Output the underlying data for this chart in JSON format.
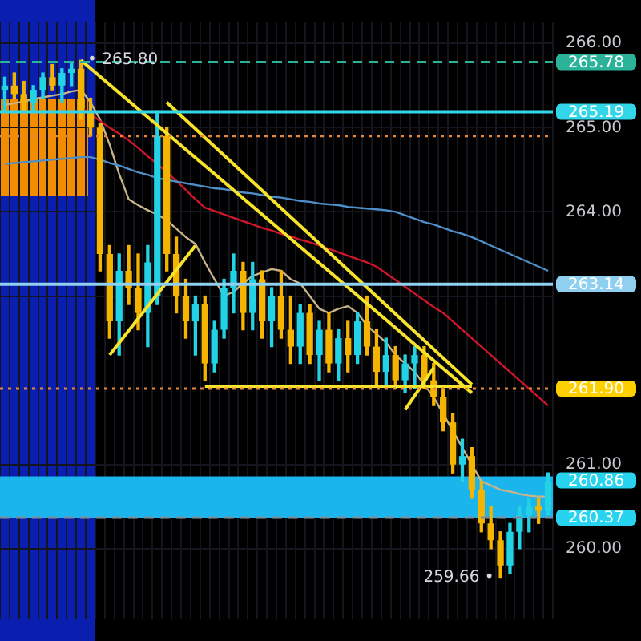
{
  "chart_data": {
    "type": "candlestick",
    "categories": [
      null,
      null,
      null,
      null,
      null,
      null,
      null,
      null,
      null,
      null,
      null,
      null,
      null,
      null,
      null,
      null,
      null,
      null,
      null,
      null,
      null,
      null,
      null,
      null,
      null,
      null,
      null,
      null,
      null,
      null,
      null,
      null,
      null,
      null,
      null,
      null,
      null,
      null,
      null,
      null,
      null,
      null,
      null,
      null,
      null,
      null,
      null,
      null,
      null,
      null,
      null,
      null,
      null,
      null,
      null,
      null,
      null,
      null
    ],
    "ohlc": [
      [
        265.45,
        265.6,
        265.2,
        265.5
      ],
      [
        265.5,
        265.65,
        265.35,
        265.4
      ],
      [
        265.4,
        265.55,
        265.2,
        265.3
      ],
      [
        265.3,
        265.5,
        265.2,
        265.45
      ],
      [
        265.45,
        265.65,
        265.35,
        265.6
      ],
      [
        265.6,
        265.75,
        265.45,
        265.5
      ],
      [
        265.5,
        265.7,
        265.3,
        265.65
      ],
      [
        265.65,
        265.78,
        265.5,
        265.7
      ],
      [
        265.7,
        265.8,
        265.1,
        265.2
      ],
      [
        265.2,
        265.35,
        264.9,
        265.0
      ],
      [
        265.0,
        265.05,
        263.3,
        263.5
      ],
      [
        263.5,
        263.6,
        262.5,
        262.7
      ],
      [
        262.7,
        263.5,
        262.3,
        263.3
      ],
      [
        263.3,
        263.6,
        262.9,
        263.1
      ],
      [
        263.1,
        263.5,
        262.6,
        262.8
      ],
      [
        262.8,
        263.6,
        262.4,
        263.4
      ],
      [
        263.0,
        265.2,
        262.9,
        264.9
      ],
      [
        264.9,
        265.0,
        263.3,
        263.5
      ],
      [
        263.5,
        263.7,
        262.8,
        263.0
      ],
      [
        263.0,
        263.2,
        262.5,
        262.7
      ],
      [
        262.7,
        263.0,
        262.3,
        262.9
      ],
      [
        262.9,
        263.0,
        262.0,
        262.2
      ],
      [
        262.2,
        262.7,
        262.1,
        262.6
      ],
      [
        262.6,
        263.2,
        262.5,
        263.1
      ],
      [
        263.1,
        263.5,
        262.8,
        263.3
      ],
      [
        263.3,
        263.4,
        262.6,
        262.8
      ],
      [
        262.8,
        263.4,
        262.6,
        263.2
      ],
      [
        263.2,
        263.3,
        262.5,
        262.7
      ],
      [
        262.7,
        263.1,
        262.4,
        263.0
      ],
      [
        263.0,
        263.3,
        262.5,
        262.6
      ],
      [
        262.6,
        263.0,
        262.2,
        262.4
      ],
      [
        262.4,
        262.9,
        262.2,
        262.8
      ],
      [
        262.8,
        262.9,
        262.2,
        262.3
      ],
      [
        262.3,
        262.7,
        262.0,
        262.6
      ],
      [
        262.6,
        262.8,
        262.1,
        262.2
      ],
      [
        262.2,
        262.6,
        262.0,
        262.5
      ],
      [
        262.5,
        262.7,
        262.1,
        262.3
      ],
      [
        262.3,
        262.8,
        262.2,
        262.7
      ],
      [
        262.7,
        263.0,
        262.3,
        262.4
      ],
      [
        262.4,
        262.6,
        261.95,
        262.1
      ],
      [
        262.1,
        262.5,
        261.9,
        262.3
      ],
      [
        262.3,
        262.4,
        261.9,
        262.0
      ],
      [
        262.0,
        262.3,
        261.85,
        262.2
      ],
      [
        262.2,
        262.4,
        261.9,
        262.3
      ],
      [
        262.3,
        262.4,
        261.9,
        262.0
      ],
      [
        262.0,
        262.2,
        261.7,
        261.8
      ],
      [
        261.8,
        261.9,
        261.4,
        261.5
      ],
      [
        261.5,
        261.6,
        260.9,
        261.0
      ],
      [
        261.0,
        261.3,
        260.8,
        261.1
      ],
      [
        261.1,
        261.2,
        260.6,
        260.7
      ],
      [
        260.7,
        260.8,
        260.2,
        260.3
      ],
      [
        260.3,
        260.5,
        260.0,
        260.1
      ],
      [
        260.1,
        260.2,
        259.66,
        259.8
      ],
      [
        259.8,
        260.3,
        259.7,
        260.2
      ],
      [
        260.2,
        260.5,
        260.0,
        260.4
      ],
      [
        260.4,
        260.6,
        260.2,
        260.5
      ],
      [
        260.5,
        260.6,
        260.3,
        260.45
      ],
      [
        260.45,
        260.9,
        260.4,
        260.8
      ]
    ],
    "colors": [
      "#22d3e6",
      "#f5b400",
      "#f5b400",
      "#22d3e6",
      "#22d3e6",
      "#f5b400",
      "#22d3e6",
      "#22d3e6",
      "#f5b400",
      "#f5b400",
      "#f5b400",
      "#f5b400",
      "#22d3e6",
      "#f5b400",
      "#f5b400",
      "#22d3e6",
      "#22d3e6",
      "#f5b400",
      "#f5b400",
      "#f5b400",
      "#22d3e6",
      "#f5b400",
      "#22d3e6",
      "#22d3e6",
      "#22d3e6",
      "#f5b400",
      "#22d3e6",
      "#f5b400",
      "#22d3e6",
      "#f5b400",
      "#f5b400",
      "#22d3e6",
      "#f5b400",
      "#22d3e6",
      "#f5b400",
      "#22d3e6",
      "#f5b400",
      "#22d3e6",
      "#f5b400",
      "#f5b400",
      "#22d3e6",
      "#f5b400",
      "#22d3e6",
      "#22d3e6",
      "#f5b400",
      "#f5b400",
      "#f5b400",
      "#f5b400",
      "#22d3e6",
      "#f5b400",
      "#f5b400",
      "#f5b400",
      "#f5b400",
      "#22d3e6",
      "#22d3e6",
      "#22d3e6",
      "#f5b400",
      "#22d3e6"
    ],
    "series": [
      {
        "type": "line",
        "color": "#4f8fc9",
        "values": [
          264.57,
          264.58,
          264.59,
          264.6,
          264.61,
          264.62,
          264.63,
          264.64,
          264.65,
          264.65,
          264.62,
          264.58,
          264.55,
          264.51,
          264.47,
          264.44,
          264.4,
          264.38,
          264.36,
          264.34,
          264.32,
          264.3,
          264.28,
          264.27,
          264.25,
          264.23,
          264.22,
          264.2,
          264.18,
          264.17,
          264.15,
          264.13,
          264.12,
          264.1,
          264.09,
          264.08,
          264.06,
          264.05,
          264.04,
          264.03,
          264.02,
          264.0,
          263.96,
          263.92,
          263.88,
          263.85,
          263.81,
          263.77,
          263.74,
          263.7,
          263.65,
          263.6,
          263.55,
          263.5,
          263.45,
          263.4,
          263.35,
          263.3
        ]
      },
      {
        "type": "line",
        "color": "#d0162b",
        "values": [
          null,
          null,
          null,
          null,
          null,
          null,
          null,
          null,
          265.24,
          265.16,
          265.08,
          265.0,
          264.93,
          264.85,
          264.76,
          264.66,
          264.57,
          264.47,
          264.37,
          264.26,
          264.15,
          264.05,
          264.01,
          263.97,
          263.93,
          263.89,
          263.85,
          263.81,
          263.78,
          263.74,
          263.71,
          263.67,
          263.64,
          263.6,
          263.56,
          263.52,
          263.48,
          263.44,
          263.4,
          263.35,
          263.27,
          263.19,
          263.11,
          263.03,
          262.95,
          262.87,
          262.8,
          262.7,
          262.6,
          262.5,
          262.4,
          262.3,
          262.2,
          262.1,
          262.0,
          261.9,
          261.8,
          261.7
        ]
      },
      {
        "type": "line",
        "color": "#c8b48a",
        "values": [
          265.27,
          265.29,
          265.31,
          265.34,
          265.36,
          265.38,
          265.4,
          265.43,
          265.45,
          265.3,
          265.1,
          264.8,
          264.45,
          264.15,
          264.08,
          264.02,
          263.97,
          263.9,
          263.8,
          263.7,
          263.62,
          263.4,
          263.2,
          263.0,
          263.05,
          263.15,
          263.24,
          263.28,
          263.32,
          263.3,
          263.2,
          263.15,
          263.0,
          262.85,
          262.8,
          262.85,
          262.88,
          262.8,
          262.65,
          262.55,
          262.45,
          262.3,
          262.2,
          262.1,
          261.95,
          261.8,
          261.6,
          261.4,
          261.2,
          261.0,
          260.8,
          260.75,
          260.7,
          260.68,
          260.65,
          260.63,
          260.62,
          260.62
        ]
      },
      {
        "type": "line",
        "color": "#f7e32a",
        "values": [
          null,
          null,
          null,
          null,
          null,
          null,
          null,
          null,
          265.8,
          null,
          null,
          null,
          null,
          null,
          null,
          null,
          null,
          null,
          null,
          null,
          null,
          null,
          null,
          null,
          null,
          null,
          null,
          null,
          null,
          null,
          null,
          null,
          null,
          null,
          null,
          null,
          null,
          null,
          null,
          null,
          null,
          null,
          null,
          null,
          null,
          null,
          null,
          null,
          null,
          261.85,
          null,
          null,
          null,
          null,
          null,
          null,
          null,
          null
        ]
      },
      {
        "type": "line",
        "color": "#f7e32a",
        "values": [
          null,
          null,
          null,
          null,
          null,
          null,
          null,
          null,
          null,
          null,
          null,
          null,
          null,
          null,
          null,
          null,
          null,
          265.3,
          null,
          null,
          null,
          null,
          null,
          null,
          null,
          null,
          null,
          null,
          null,
          null,
          null,
          null,
          null,
          null,
          null,
          null,
          null,
          null,
          null,
          null,
          null,
          null,
          null,
          null,
          null,
          null,
          null,
          null,
          null,
          261.95,
          null,
          null,
          null,
          null,
          null,
          null,
          null,
          null
        ]
      },
      {
        "type": "line",
        "color": "#f7e32a",
        "values": [
          null,
          null,
          null,
          null,
          null,
          null,
          null,
          null,
          null,
          null,
          null,
          null,
          null,
          null,
          null,
          null,
          null,
          null,
          null,
          null,
          null,
          261.93,
          null,
          null,
          null,
          null,
          null,
          null,
          null,
          null,
          null,
          null,
          null,
          null,
          null,
          null,
          null,
          null,
          null,
          null,
          null,
          null,
          null,
          null,
          null,
          null,
          null,
          null,
          null,
          261.93,
          null,
          null,
          null,
          null,
          null,
          null,
          null,
          null
        ]
      },
      {
        "type": "line",
        "color": "#f7e32a",
        "values": [
          null,
          null,
          null,
          null,
          null,
          null,
          null,
          null,
          null,
          null,
          null,
          262.3,
          null,
          null,
          null,
          null,
          null,
          null,
          null,
          null,
          263.6,
          null,
          null,
          null,
          null,
          null,
          null,
          null,
          null,
          null,
          null,
          null,
          null,
          null,
          null,
          null,
          null,
          null,
          null,
          null,
          null,
          null,
          null,
          null,
          null,
          null,
          null,
          null,
          null,
          null,
          null,
          null,
          null,
          null,
          null,
          null,
          null,
          null
        ]
      },
      {
        "type": "line",
        "color": "#f7e32a",
        "values": [
          null,
          null,
          null,
          null,
          null,
          null,
          null,
          null,
          null,
          null,
          null,
          null,
          null,
          null,
          null,
          null,
          null,
          null,
          null,
          null,
          null,
          null,
          null,
          null,
          null,
          null,
          null,
          null,
          null,
          null,
          null,
          null,
          null,
          null,
          null,
          null,
          null,
          null,
          null,
          null,
          null,
          null,
          261.65,
          null,
          null,
          262.15,
          null,
          null,
          null,
          null,
          null,
          null,
          null,
          null,
          null,
          null,
          null,
          null
        ]
      }
    ],
    "ylim": [
      259.17,
      266.25
    ],
    "yticks": [
      {
        "value": 260,
        "label": "260.00"
      },
      {
        "value": 261,
        "label": "261.00"
      },
      {
        "value": 263,
        "label": null
      },
      {
        "value": 264,
        "label": "264.00"
      },
      {
        "value": 265,
        "label": "265.00"
      },
      {
        "value": 266,
        "label": "266.00"
      }
    ],
    "grid": true,
    "legend": false,
    "bands": [
      {
        "axis": "y",
        "from": 260.37,
        "to": 260.86,
        "label": "260.86",
        "color": "#19b5ec"
      }
    ],
    "ref_lines": [
      {
        "axis": "y",
        "value": 265.78,
        "label": "265.78",
        "color": "#2bb39a",
        "line_style": "dashed"
      },
      {
        "axis": "y",
        "value": 265.19,
        "label": "265.19",
        "color": "#33d6e8",
        "line_style": "solid"
      },
      {
        "axis": "y",
        "value": 264.9,
        "color": "#e8883a",
        "line_style": "dotted"
      },
      {
        "axis": "y",
        "value": 263.14,
        "label": "263.14",
        "color": "#8fd0f0",
        "line_style": "solid"
      },
      {
        "axis": "y",
        "value": 261.9,
        "label": "261.90",
        "color": "#e8883a",
        "line_style": "dotted"
      },
      {
        "axis": "y",
        "value": 260.37,
        "label": "260.37",
        "color": "#7a8fa0",
        "line_style": "dashed"
      }
    ],
    "annotations": [
      "• 265.80",
      "259.66 •"
    ]
  }
}
